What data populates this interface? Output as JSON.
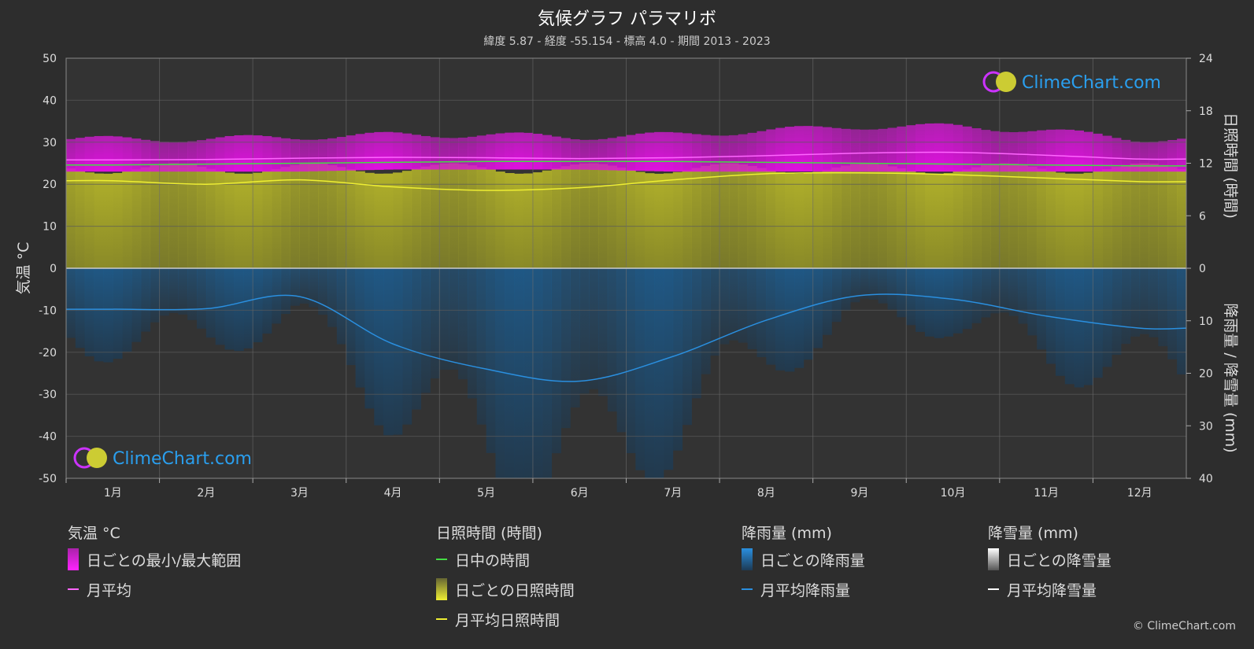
{
  "title": "気候グラフ パラマリボ",
  "subtitle": "緯度 5.87 - 経度 -55.154 - 標高 4.0 - 期間 2013 - 2023",
  "watermark": "ClimeChart.com",
  "copyright": "© ClimeChart.com",
  "chart_data": {
    "type": "line",
    "months": [
      "1月",
      "2月",
      "3月",
      "4月",
      "5月",
      "6月",
      "7月",
      "8月",
      "9月",
      "10月",
      "11月",
      "12月"
    ],
    "y_left": {
      "label": "気温 °C",
      "range": [
        -50,
        50
      ],
      "ticks": [
        50,
        40,
        30,
        20,
        10,
        0,
        -10,
        -20,
        -30,
        -40,
        -50
      ]
    },
    "y_right_top": {
      "label": "日照時間 (時間)",
      "range": [
        0,
        24
      ],
      "ticks": [
        24,
        18,
        12,
        6,
        0
      ]
    },
    "y_right_bottom": {
      "label": "降雨量 / 降雪量 (mm)",
      "range": [
        0,
        40
      ],
      "ticks": [
        10,
        20,
        30,
        40
      ]
    },
    "series": [
      {
        "name": "月平均",
        "axis": "temperature",
        "color": "#ff66ff",
        "values": [
          25.8,
          25.9,
          26.2,
          26.4,
          26.3,
          26.1,
          26.3,
          26.8,
          27.4,
          27.6,
          26.9,
          26.0
        ]
      },
      {
        "name": "日中の時間",
        "axis": "sunshine",
        "color": "#44dd44",
        "values": [
          11.8,
          11.9,
          12.0,
          12.1,
          12.2,
          12.2,
          12.2,
          12.1,
          12.0,
          11.9,
          11.8,
          11.7
        ]
      },
      {
        "name": "月平均日照時間",
        "axis": "sunshine",
        "color": "#eeee33",
        "values": [
          10.0,
          9.6,
          10.1,
          9.3,
          8.9,
          9.2,
          10.1,
          10.8,
          10.9,
          10.7,
          10.3,
          9.9
        ]
      },
      {
        "name": "月平均降雨量",
        "axis": "precipitation",
        "color": "#2a8fdf",
        "values": [
          7.8,
          7.7,
          5.4,
          14.4,
          19.2,
          21.5,
          16.8,
          9.9,
          5.2,
          5.9,
          9.1,
          11.4
        ]
      }
    ],
    "daily_temperature_range": {
      "min": [
        23,
        23,
        23,
        23.5,
        23.5,
        23.5,
        23,
        23,
        23,
        23,
        23,
        23
      ],
      "max": [
        30,
        30,
        30.5,
        31,
        31,
        30.5,
        31,
        32,
        33,
        33,
        32,
        30
      ]
    },
    "daily_sunshine_band_color": "#999922",
    "daily_rain_band_color": "#1e5a8a"
  },
  "legend": {
    "groups": [
      {
        "header": "気温 °C",
        "items": [
          {
            "label": "日ごとの最小/最大範囲",
            "kind": "box",
            "color": "#ee11ee"
          },
          {
            "label": "月平均",
            "kind": "line",
            "color": "#ff66ff"
          }
        ]
      },
      {
        "header": "日照時間 (時間)",
        "items": [
          {
            "label": "日中の時間",
            "kind": "line",
            "color": "#44dd44"
          },
          {
            "label": "日ごとの日照時間",
            "kind": "box",
            "color": "#cccc33"
          },
          {
            "label": "月平均日照時間",
            "kind": "line",
            "color": "#eeee33"
          }
        ]
      },
      {
        "header": "降雨量 (mm)",
        "items": [
          {
            "label": "日ごとの降雨量",
            "kind": "box",
            "color": "#2a8fdf"
          },
          {
            "label": "月平均降雨量",
            "kind": "line",
            "color": "#2a8fdf"
          }
        ]
      },
      {
        "header": "降雪量 (mm)",
        "items": [
          {
            "label": "日ごとの降雪量",
            "kind": "box",
            "color": "#dddddd"
          },
          {
            "label": "月平均降雪量",
            "kind": "line",
            "color": "#ffffff"
          }
        ]
      }
    ]
  }
}
